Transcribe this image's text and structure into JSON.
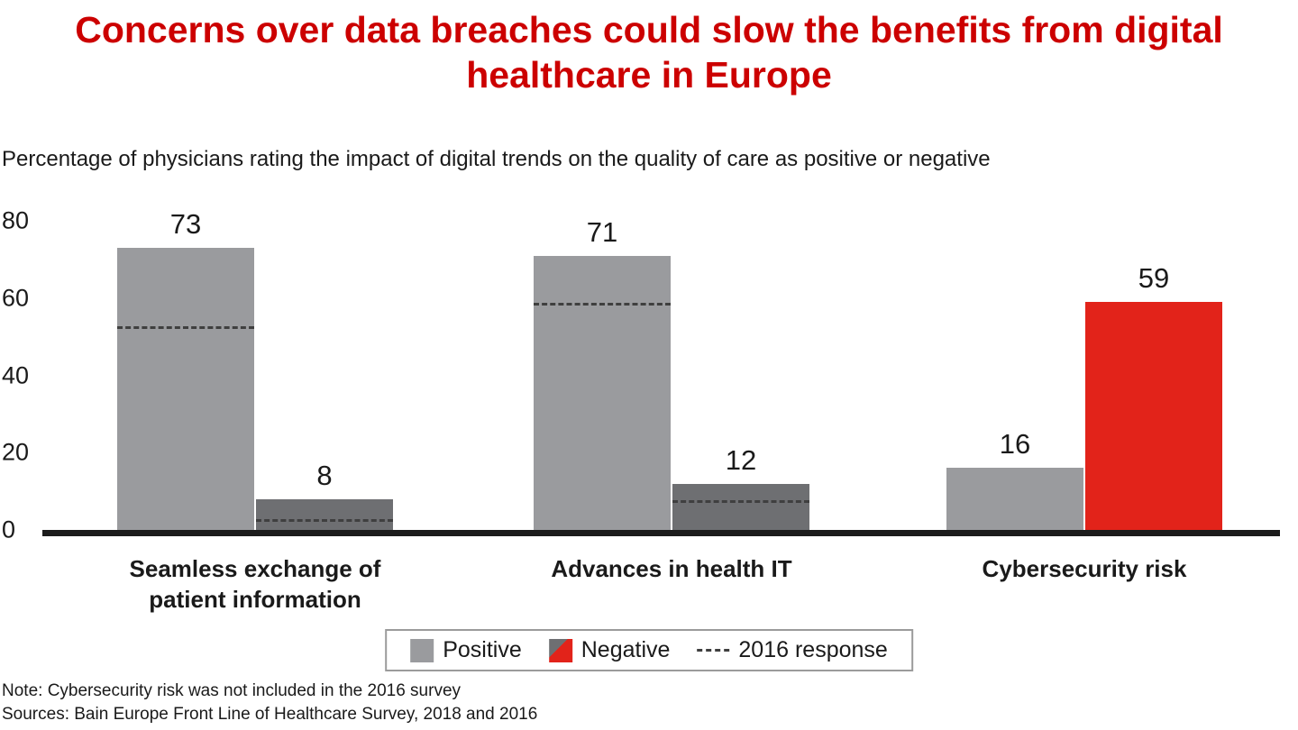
{
  "title": "Concerns over data breaches could slow the benefits from digital healthcare in Europe",
  "subtitle": "Percentage of physicians rating the impact of digital trends on the quality of care as positive or negative",
  "note": "Note: Cybersecurity risk was not included in the 2016 survey",
  "sources": "Sources: Bain Europe Front Line of Healthcare Survey, 2018 and 2016",
  "legend": {
    "positive": "Positive",
    "negative": "Negative",
    "response_2016": "2016 response"
  },
  "colors": {
    "title_red": "#cc0000",
    "positive_gray": "#9a9b9e",
    "negative_gray": "#6e6f72",
    "negative_red": "#e2231a",
    "dash_color": "#3f3f3f",
    "baseline_black": "#1c1c1c"
  },
  "chart_data": {
    "type": "bar",
    "categories": [
      "Seamless exchange of patient information",
      "Advances in health IT",
      "Cybersecurity risk"
    ],
    "series": [
      {
        "name": "Positive",
        "values": [
          73,
          71,
          16
        ],
        "colors": [
          "#9a9b9e",
          "#9a9b9e",
          "#9a9b9e"
        ]
      },
      {
        "name": "Negative",
        "values": [
          8,
          12,
          59
        ],
        "colors": [
          "#6e6f72",
          "#6e6f72",
          "#e2231a"
        ]
      }
    ],
    "response_2016": [
      {
        "name": "Positive",
        "values": [
          52,
          58,
          null
        ]
      },
      {
        "name": "Negative",
        "values": [
          2,
          7,
          null
        ]
      }
    ],
    "ylim": [
      0,
      80
    ],
    "yticks": [
      0,
      20,
      40,
      60,
      80
    ],
    "ylabel": "",
    "xlabel": "",
    "grid": false,
    "legend_position": "bottom"
  }
}
